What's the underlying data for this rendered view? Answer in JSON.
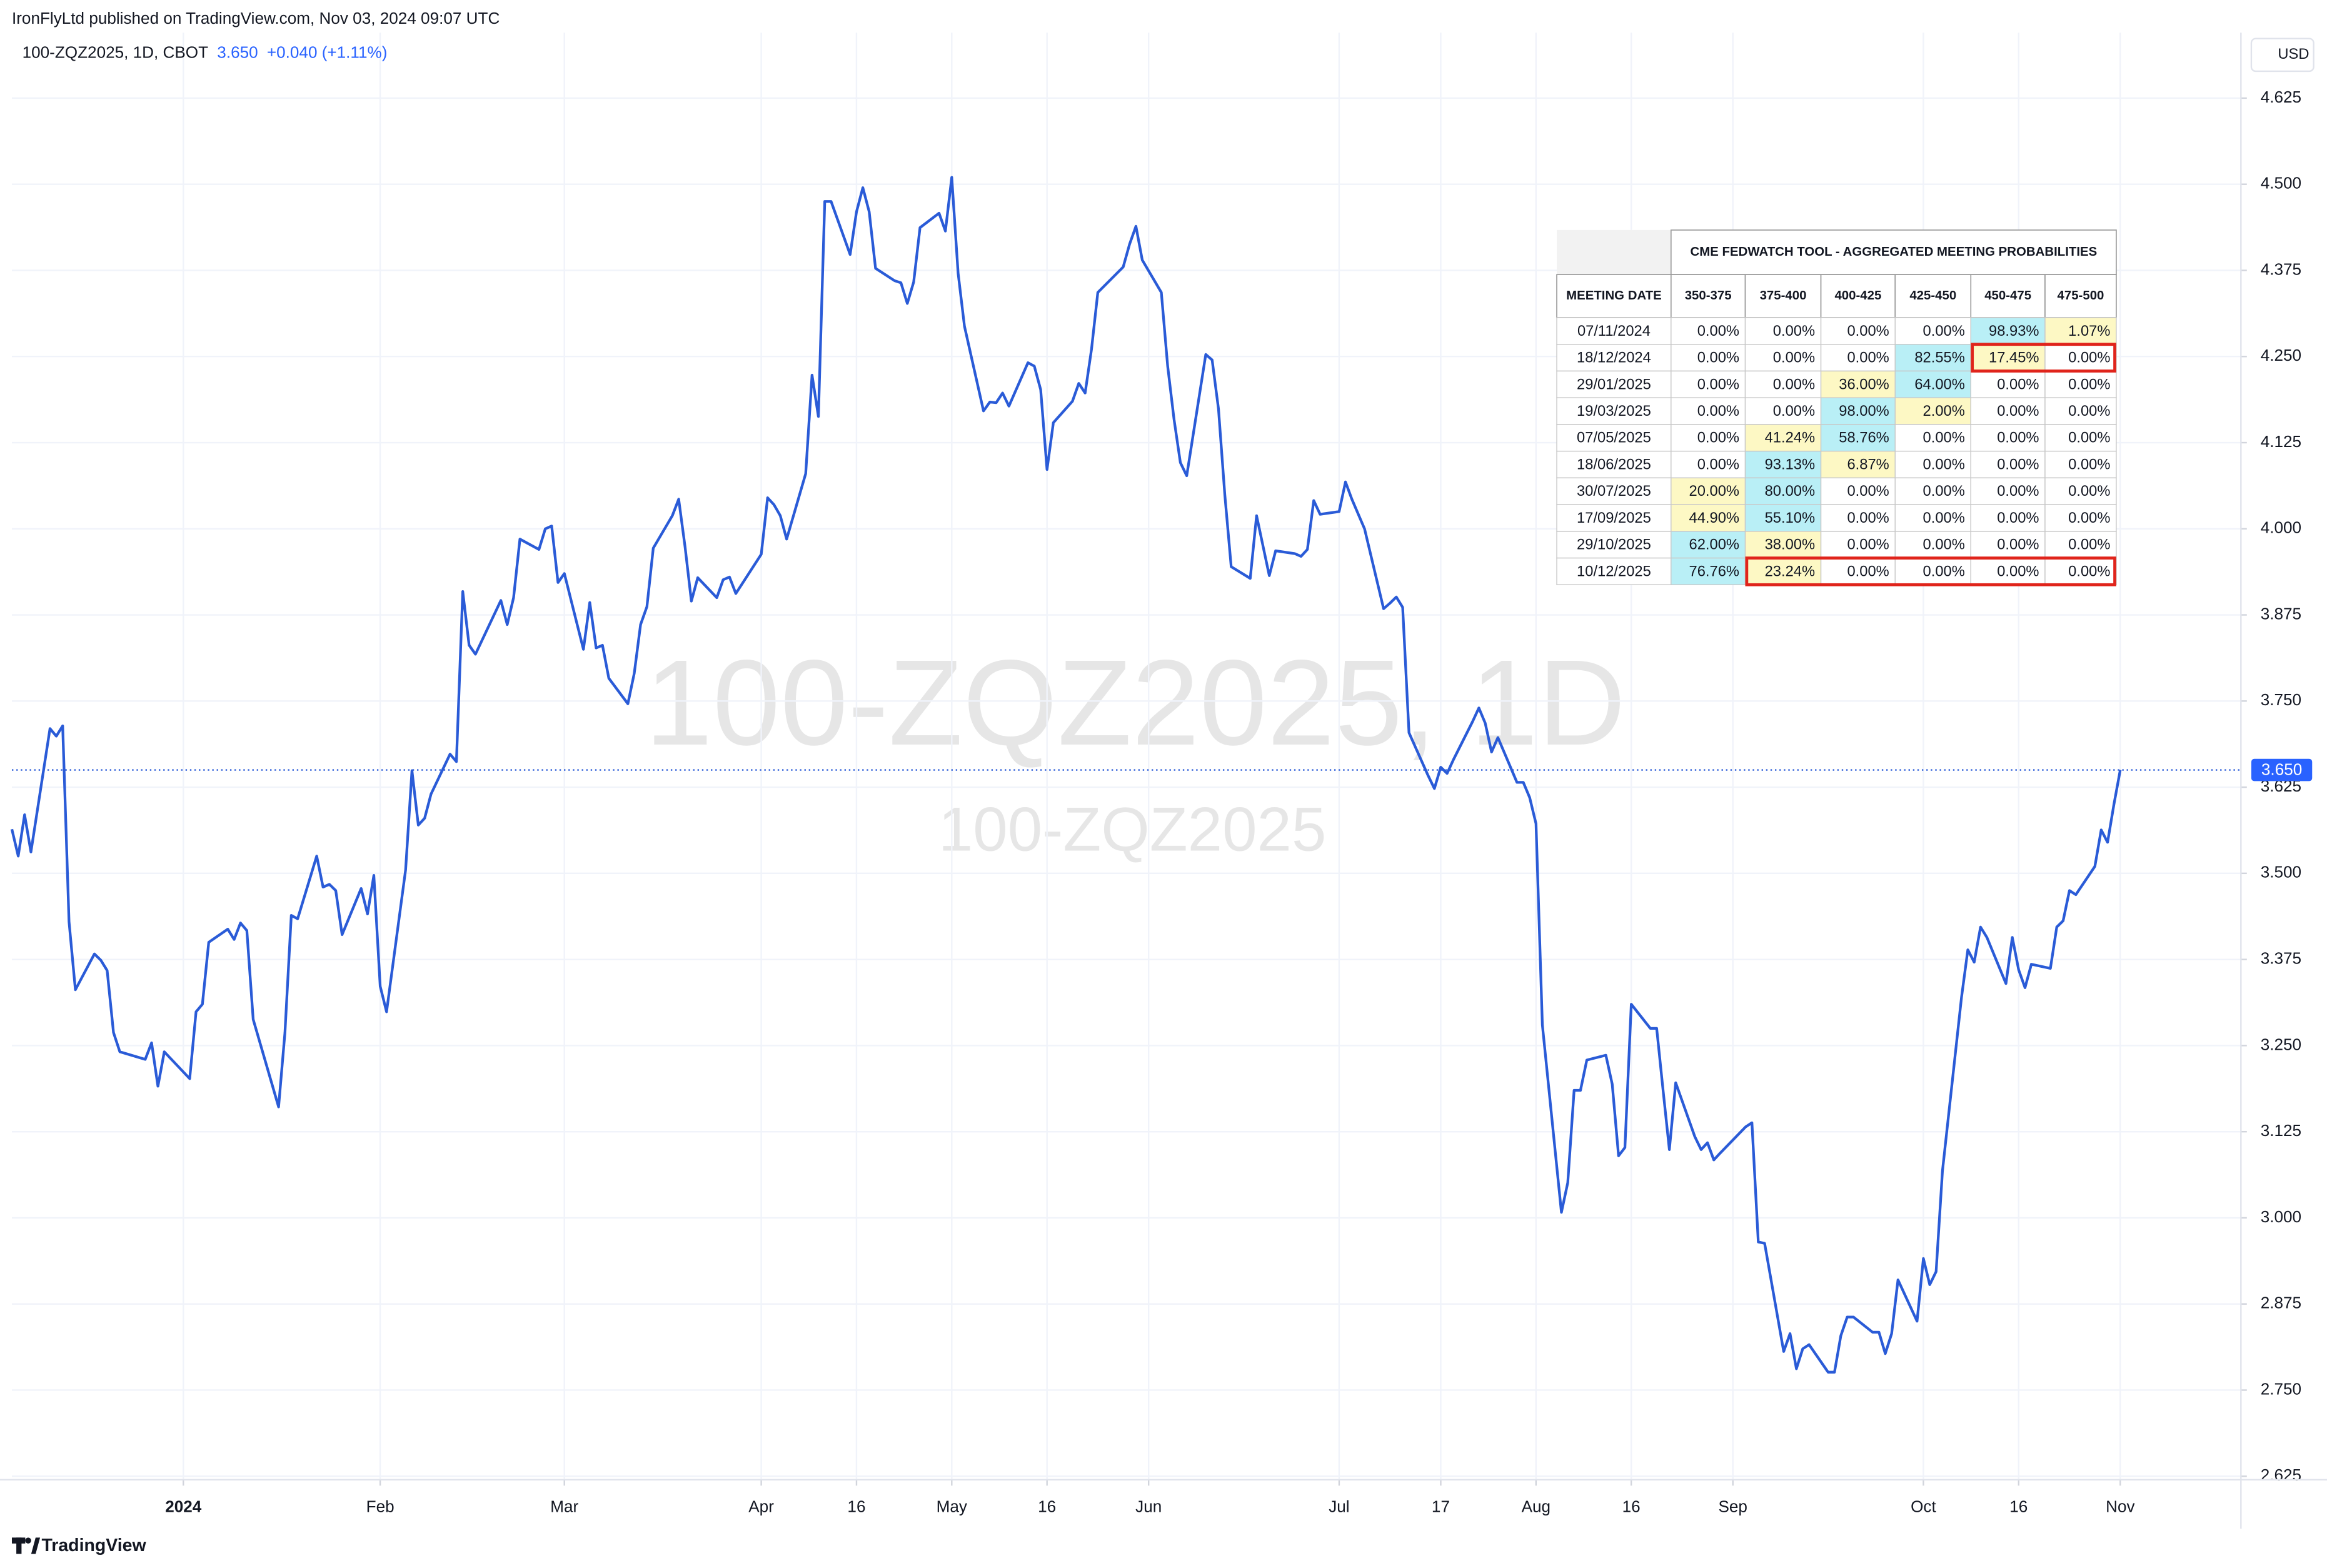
{
  "header": {
    "published": "IronFlyLtd published on TradingView.com, Nov 03, 2024 09:07 UTC",
    "symbol": "100-ZQZ2025, 1D, CBOT",
    "price": "3.650",
    "change": "+0.040 (+1.11%)",
    "currency": "USD",
    "watermark": "100-ZQZ2025, 1D",
    "watermark_sub": "100-ZQZ2025",
    "brand": "TradingView"
  },
  "chart_data": {
    "type": "line",
    "color": "#2a5bd7",
    "x": [
      "2023-12-05",
      "2023-12-06",
      "2023-12-07",
      "2023-12-08",
      "2023-12-11",
      "2023-12-12",
      "2023-12-13",
      "2023-12-14",
      "2023-12-15",
      "2023-12-18",
      "2023-12-19",
      "2023-12-20",
      "2023-12-21",
      "2023-12-22",
      "2023-12-26",
      "2023-12-27",
      "2023-12-28",
      "2023-12-29",
      "2024-01-02",
      "2024-01-03",
      "2024-01-04",
      "2024-01-05",
      "2024-01-08",
      "2024-01-09",
      "2024-01-10",
      "2024-01-11",
      "2024-01-12",
      "2024-01-16",
      "2024-01-17",
      "2024-01-18",
      "2024-01-19",
      "2024-01-22",
      "2024-01-23",
      "2024-01-24",
      "2024-01-25",
      "2024-01-26",
      "2024-01-29",
      "2024-01-30",
      "2024-01-31",
      "2024-02-01",
      "2024-02-02",
      "2024-02-05",
      "2024-02-06",
      "2024-02-07",
      "2024-02-08",
      "2024-02-09",
      "2024-02-12",
      "2024-02-13",
      "2024-02-14",
      "2024-02-15",
      "2024-02-16",
      "2024-02-20",
      "2024-02-21",
      "2024-02-22",
      "2024-02-23",
      "2024-02-26",
      "2024-02-27",
      "2024-02-28",
      "2024-02-29",
      "2024-03-01",
      "2024-03-04",
      "2024-03-05",
      "2024-03-06",
      "2024-03-07",
      "2024-03-08",
      "2024-03-11",
      "2024-03-12",
      "2024-03-13",
      "2024-03-14",
      "2024-03-15",
      "2024-03-18",
      "2024-03-19",
      "2024-03-20",
      "2024-03-21",
      "2024-03-22",
      "2024-03-25",
      "2024-03-26",
      "2024-03-27",
      "2024-03-28",
      "2024-04-01",
      "2024-04-02",
      "2024-04-03",
      "2024-04-04",
      "2024-04-05",
      "2024-04-08",
      "2024-04-09",
      "2024-04-10",
      "2024-04-11",
      "2024-04-12",
      "2024-04-15",
      "2024-04-16",
      "2024-04-17",
      "2024-04-18",
      "2024-04-19",
      "2024-04-22",
      "2024-04-23",
      "2024-04-24",
      "2024-04-25",
      "2024-04-26",
      "2024-04-29",
      "2024-04-30",
      "2024-05-01",
      "2024-05-02",
      "2024-05-03",
      "2024-05-06",
      "2024-05-07",
      "2024-05-08",
      "2024-05-09",
      "2024-05-10",
      "2024-05-13",
      "2024-05-14",
      "2024-05-15",
      "2024-05-16",
      "2024-05-17",
      "2024-05-20",
      "2024-05-21",
      "2024-05-22",
      "2024-05-23",
      "2024-05-24",
      "2024-05-28",
      "2024-05-29",
      "2024-05-30",
      "2024-05-31",
      "2024-06-03",
      "2024-06-04",
      "2024-06-05",
      "2024-06-06",
      "2024-06-07",
      "2024-06-10",
      "2024-06-11",
      "2024-06-12",
      "2024-06-13",
      "2024-06-14",
      "2024-06-17",
      "2024-06-18",
      "2024-06-20",
      "2024-06-21",
      "2024-06-24",
      "2024-06-25",
      "2024-06-26",
      "2024-06-27",
      "2024-06-28",
      "2024-07-01",
      "2024-07-02",
      "2024-07-03",
      "2024-07-05",
      "2024-07-08",
      "2024-07-09",
      "2024-07-10",
      "2024-07-11",
      "2024-07-12",
      "2024-07-15",
      "2024-07-16",
      "2024-07-17",
      "2024-07-18",
      "2024-07-19",
      "2024-07-22",
      "2024-07-23",
      "2024-07-24",
      "2024-07-25",
      "2024-07-26",
      "2024-07-29",
      "2024-07-30",
      "2024-07-31",
      "2024-08-01",
      "2024-08-02",
      "2024-08-05",
      "2024-08-06",
      "2024-08-07",
      "2024-08-08",
      "2024-08-09",
      "2024-08-12",
      "2024-08-13",
      "2024-08-14",
      "2024-08-15",
      "2024-08-16",
      "2024-08-19",
      "2024-08-20",
      "2024-08-21",
      "2024-08-22",
      "2024-08-23",
      "2024-08-26",
      "2024-08-27",
      "2024-08-28",
      "2024-08-29",
      "2024-08-30",
      "2024-09-03",
      "2024-09-04",
      "2024-09-05",
      "2024-09-06",
      "2024-09-09",
      "2024-09-10",
      "2024-09-11",
      "2024-09-12",
      "2024-09-13",
      "2024-09-16",
      "2024-09-17",
      "2024-09-18",
      "2024-09-19",
      "2024-09-20",
      "2024-09-23",
      "2024-09-24",
      "2024-09-25",
      "2024-09-26",
      "2024-09-27",
      "2024-09-30",
      "2024-10-01",
      "2024-10-02",
      "2024-10-03",
      "2024-10-04",
      "2024-10-07",
      "2024-10-08",
      "2024-10-09",
      "2024-10-10",
      "2024-10-11",
      "2024-10-14",
      "2024-10-15",
      "2024-10-16",
      "2024-10-17",
      "2024-10-18",
      "2024-10-21",
      "2024-10-22",
      "2024-10-23",
      "2024-10-24",
      "2024-10-25",
      "2024-10-28",
      "2024-10-29",
      "2024-10-30",
      "2024-10-31",
      "2024-11-01"
    ],
    "values": [
      3.564,
      3.525,
      3.585,
      3.531,
      3.71,
      3.699,
      3.714,
      3.43,
      3.331,
      3.383,
      3.374,
      3.359,
      3.269,
      3.241,
      3.23,
      3.254,
      3.191,
      3.241,
      3.202,
      3.299,
      3.31,
      3.4,
      3.419,
      3.404,
      3.428,
      3.417,
      3.288,
      3.161,
      3.269,
      3.439,
      3.434,
      3.525,
      3.48,
      3.484,
      3.475,
      3.411,
      3.478,
      3.441,
      3.497,
      3.336,
      3.299,
      3.505,
      3.649,
      3.57,
      3.58,
      3.615,
      3.673,
      3.662,
      3.909,
      3.831,
      3.818,
      3.896,
      3.861,
      3.9,
      3.985,
      3.97,
      4.0,
      4.004,
      3.922,
      3.935,
      3.825,
      3.893,
      3.827,
      3.831,
      3.783,
      3.746,
      3.79,
      3.861,
      3.887,
      3.972,
      4.019,
      4.043,
      3.974,
      3.895,
      3.929,
      3.9,
      3.926,
      3.93,
      3.906,
      3.963,
      4.045,
      4.035,
      4.019,
      3.985,
      4.08,
      4.223,
      4.163,
      4.475,
      4.475,
      4.398,
      4.46,
      4.495,
      4.46,
      4.378,
      4.36,
      4.357,
      4.327,
      4.358,
      4.437,
      4.458,
      4.432,
      4.51,
      4.371,
      4.294,
      4.171,
      4.184,
      4.183,
      4.197,
      4.178,
      4.241,
      4.236,
      4.202,
      4.086,
      4.154,
      4.185,
      4.211,
      4.197,
      4.26,
      4.343,
      4.38,
      4.413,
      4.439,
      4.39,
      4.343,
      4.236,
      4.159,
      4.096,
      4.077,
      4.253,
      4.245,
      4.174,
      4.049,
      3.945,
      3.928,
      4.019,
      3.932,
      3.968,
      3.964,
      3.96,
      3.97,
      4.041,
      4.021,
      4.025,
      4.068,
      4.043,
      4.0,
      3.884,
      3.892,
      3.901,
      3.886,
      3.704,
      3.642,
      3.623,
      3.654,
      3.645,
      3.665,
      3.72,
      3.74,
      3.718,
      3.676,
      3.697,
      3.632,
      3.632,
      3.61,
      3.572,
      3.28,
      3.008,
      3.051,
      3.185,
      3.185,
      3.229,
      3.236,
      3.194,
      3.09,
      3.102,
      3.31,
      3.275,
      3.275,
      3.186,
      3.099,
      3.196,
      3.118,
      3.099,
      3.109,
      3.084,
      3.094,
      3.132,
      3.138,
      2.965,
      2.963,
      2.806,
      2.832,
      2.781,
      2.81,
      2.816,
      2.776,
      2.776,
      2.829,
      2.856,
      2.856,
      2.834,
      2.834,
      2.803,
      2.832,
      2.91,
      2.85,
      2.941,
      2.903,
      2.922,
      3.068,
      3.32,
      3.389,
      3.371,
      3.422,
      3.407,
      3.34,
      3.407,
      3.36,
      3.334,
      3.368,
      3.362,
      3.422,
      3.431,
      3.475,
      3.469,
      3.51,
      3.563,
      3.545,
      3.6,
      3.65
    ],
    "xlim": [
      "2023-12-05",
      "2024-11-20"
    ],
    "xticks": [
      {
        "value": "2024-01-01",
        "label": "2024"
      },
      {
        "value": "2024-02-01",
        "label": "Feb"
      },
      {
        "value": "2024-03-01",
        "label": "Mar"
      },
      {
        "value": "2024-04-01",
        "label": "Apr"
      },
      {
        "value": "2024-04-16",
        "label": "16"
      },
      {
        "value": "2024-05-01",
        "label": "May"
      },
      {
        "value": "2024-05-16",
        "label": "16"
      },
      {
        "value": "2024-06-01",
        "label": "Jun"
      },
      {
        "value": "2024-07-01",
        "label": "Jul"
      },
      {
        "value": "2024-07-17",
        "label": "17"
      },
      {
        "value": "2024-08-01",
        "label": "Aug"
      },
      {
        "value": "2024-08-16",
        "label": "16"
      },
      {
        "value": "2024-09-01",
        "label": "Sep"
      },
      {
        "value": "2024-10-01",
        "label": "Oct"
      },
      {
        "value": "2024-10-16",
        "label": "16"
      },
      {
        "value": "2024-11-01",
        "label": "Nov"
      }
    ],
    "ylim": [
      2.62,
      4.72
    ],
    "yticks": [
      2.625,
      {
        "value": 2.75,
        "label": "2.750"
      },
      2.875,
      {
        "value": 3,
        "label": "3.000"
      },
      3.125,
      {
        "value": 3.25,
        "label": "3.250"
      },
      3.375,
      {
        "value": 3.5,
        "label": "3.500"
      },
      3.625,
      {
        "value": 3.75,
        "label": "3.750"
      },
      3.875,
      {
        "value": 4,
        "label": "4.000"
      },
      4.125,
      {
        "value": 4.25,
        "label": "4.250"
      },
      4.375,
      {
        "value": 4.5,
        "label": "4.500"
      },
      4.625
    ],
    "grid": true,
    "last_price": {
      "value": 3.65,
      "label": "3.650"
    }
  },
  "table": {
    "title": "CME FEDWATCH TOOL - AGGREGATED MEETING PROBABILITIES",
    "columns": [
      "MEETING DATE",
      "350-375",
      "375-400",
      "400-425",
      "425-450",
      "450-475",
      "475-500"
    ],
    "rows": [
      [
        "07/11/2024",
        "0.00%",
        "0.00%",
        "0.00%",
        "0.00%",
        "98.93%",
        "1.07%"
      ],
      [
        "18/12/2024",
        "0.00%",
        "0.00%",
        "0.00%",
        "82.55%",
        "17.45%",
        "0.00%"
      ],
      [
        "29/01/2025",
        "0.00%",
        "0.00%",
        "36.00%",
        "64.00%",
        "0.00%",
        "0.00%"
      ],
      [
        "19/03/2025",
        "0.00%",
        "0.00%",
        "98.00%",
        "2.00%",
        "0.00%",
        "0.00%"
      ],
      [
        "07/05/2025",
        "0.00%",
        "41.24%",
        "58.76%",
        "0.00%",
        "0.00%",
        "0.00%"
      ],
      [
        "18/06/2025",
        "0.00%",
        "93.13%",
        "6.87%",
        "0.00%",
        "0.00%",
        "0.00%"
      ],
      [
        "30/07/2025",
        "20.00%",
        "80.00%",
        "0.00%",
        "0.00%",
        "0.00%",
        "0.00%"
      ],
      [
        "17/09/2025",
        "44.90%",
        "55.10%",
        "0.00%",
        "0.00%",
        "0.00%",
        "0.00%"
      ],
      [
        "29/10/2025",
        "62.00%",
        "38.00%",
        "0.00%",
        "0.00%",
        "0.00%",
        "0.00%"
      ],
      [
        "10/12/2025",
        "76.76%",
        "23.24%",
        "0.00%",
        "0.00%",
        "0.00%",
        "0.00%"
      ]
    ]
  }
}
